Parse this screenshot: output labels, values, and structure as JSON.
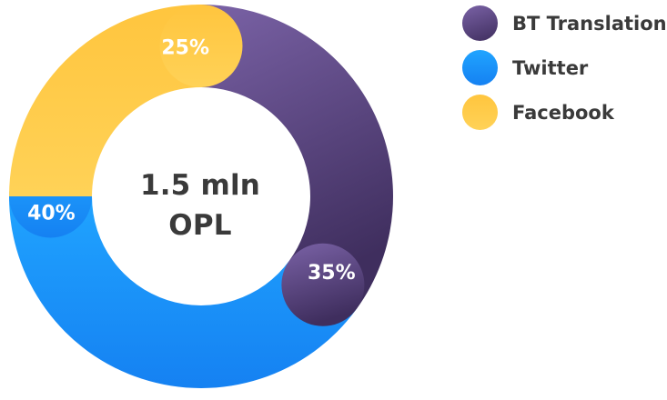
{
  "chart_data": {
    "type": "pie",
    "categories": [
      "BT Translation",
      "Twitter",
      "Facebook"
    ],
    "values": [
      35,
      40,
      25
    ],
    "value_labels": [
      "35%",
      "40%",
      "25%"
    ],
    "colors": [
      "#5a4781",
      "#1a8cff",
      "#ffc23f"
    ],
    "center_text": [
      "1.5 mln",
      "OPL"
    ],
    "legend": {
      "placement": "top-right",
      "items": [
        "BT Translation",
        "Twitter",
        "Facebook"
      ]
    }
  }
}
